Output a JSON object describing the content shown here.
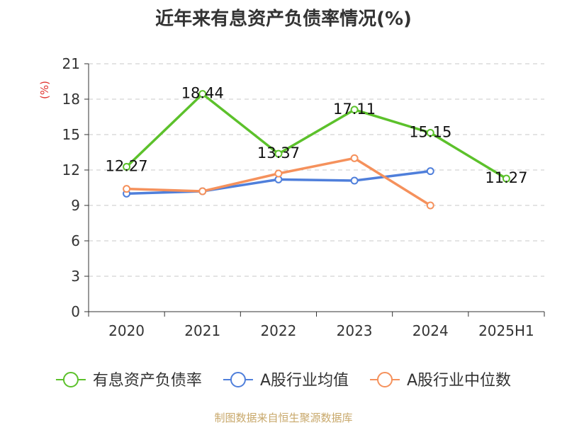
{
  "chart_data": {
    "type": "line",
    "title": "近年来有息资产负债率情况(%)",
    "ylabel": "(%)",
    "categories": [
      "2020",
      "2021",
      "2022",
      "2023",
      "2024",
      "2025H1"
    ],
    "ylim": [
      0,
      21
    ],
    "yticks": [
      0,
      3,
      6,
      9,
      12,
      15,
      18,
      21
    ],
    "grid": true,
    "legend_position": "bottom",
    "series": [
      {
        "name": "有息资产负债率",
        "color": "#5cc12b",
        "values": [
          12.27,
          18.44,
          13.37,
          17.11,
          15.15,
          11.27
        ],
        "show_labels": true
      },
      {
        "name": "A股行业均值",
        "color": "#4f7fdb",
        "values": [
          10.0,
          10.2,
          11.2,
          11.1,
          11.9,
          null
        ],
        "show_labels": false
      },
      {
        "name": "A股行业中位数",
        "color": "#f5915c",
        "values": [
          10.4,
          10.2,
          11.7,
          13.0,
          9.0,
          null
        ],
        "show_labels": false
      }
    ]
  },
  "source": "制图数据来自恒生聚源数据库"
}
